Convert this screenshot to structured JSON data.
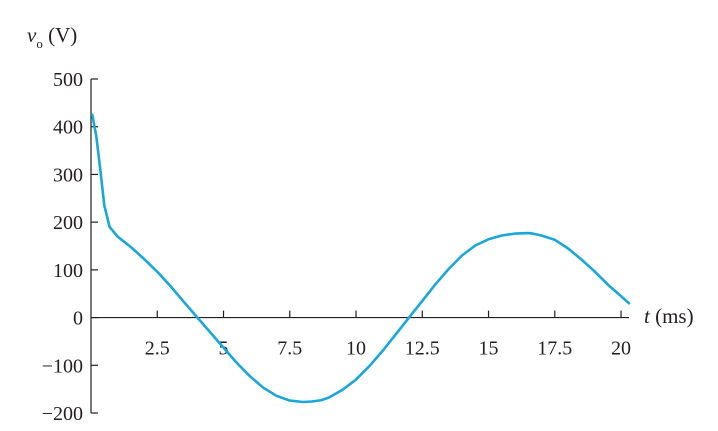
{
  "chart_data": {
    "type": "line",
    "title": "",
    "xlabel_var": "t",
    "xlabel_unit": " (ms)",
    "ylabel_var": "v",
    "ylabel_sub": "o",
    "ylabel_unit": " (V)",
    "xlim": [
      0,
      20.3
    ],
    "ylim": [
      -200,
      500
    ],
    "xticks": [
      2.5,
      5,
      7.5,
      10,
      12.5,
      15,
      17.5,
      20
    ],
    "xtick_labels": [
      "2.5",
      "5",
      "7.5",
      "10",
      "12.5",
      "15",
      "17.5",
      "20"
    ],
    "yticks": [
      500,
      400,
      300,
      200,
      100,
      0,
      -100,
      -200
    ],
    "ytick_labels": [
      "500",
      "400",
      "300",
      "200",
      "100",
      "0",
      "−100",
      "−200"
    ],
    "grid": false,
    "colors": {
      "series": "#1aa6d8",
      "axis": "#231f20"
    },
    "series": [
      {
        "x": [
          0.05,
          0.2,
          0.35,
          0.5,
          0.7,
          1.0,
          1.5,
          2.0,
          2.5,
          3.0,
          3.5,
          4.0,
          4.5,
          5.0,
          5.5,
          6.0,
          6.5,
          7.0,
          7.5,
          8.0,
          8.33,
          8.7,
          9.0,
          9.5,
          10.0,
          10.5,
          11.0,
          11.5,
          12.0,
          12.5,
          13.0,
          13.5,
          14.0,
          14.5,
          15.0,
          15.5,
          16.0,
          16.5,
          16.67,
          17.0,
          17.5,
          18.0,
          18.5,
          19.0,
          19.5,
          20.0,
          20.3
        ],
        "y": [
          425,
          380,
          310,
          235,
          190,
          170,
          148,
          123,
          96,
          66,
          33,
          1,
          -31,
          -63,
          -95,
          -123,
          -147,
          -164,
          -174,
          -177,
          -176,
          -173,
          -167,
          -151,
          -130,
          -102,
          -70,
          -35,
          0,
          35,
          70,
          102,
          130,
          151,
          164,
          172,
          176,
          177,
          176,
          172,
          163,
          145,
          122,
          97,
          69,
          45,
          30
        ]
      }
    ]
  }
}
